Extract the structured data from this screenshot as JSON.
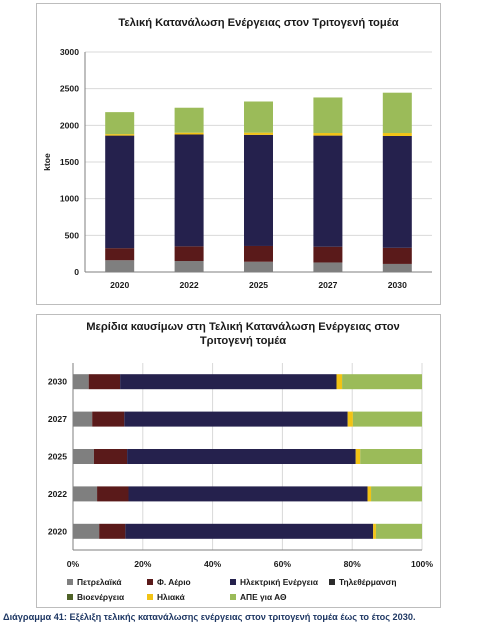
{
  "caption": "Διάγραμμα 41: Εξέλιξη τελικής κατανάλωσης ενέργειας στον τριτογενή τομέα έως το έτος 2030.",
  "colors": {
    "petrelaika": "#7f7f7f",
    "fysiko_aerio": "#5a1a1a",
    "ilektriki": "#25214d",
    "tiletherm": "#2b2b2b",
    "bioenergeia": "#4f6228",
    "iliaka": "#f2c314",
    "ape_ath": "#9bbb59",
    "grid": "#d9d9d9",
    "axis": "#7f7f7f"
  },
  "chart_data": [
    {
      "type": "bar",
      "stacked": true,
      "title": "Τελική Κατανάλωση Ενέργειας στον Τριτογενή τομέα",
      "xlabel": "",
      "ylabel": "ktoe",
      "ylim": [
        0,
        3000
      ],
      "yticks": [
        0,
        500,
        1000,
        1500,
        2000,
        2500,
        3000
      ],
      "grid": true,
      "categories": [
        "2020",
        "2022",
        "2025",
        "2027",
        "2030"
      ],
      "series": [
        {
          "key": "petrelaika",
          "values": [
            160,
            150,
            140,
            130,
            110
          ]
        },
        {
          "key": "fysiko_aerio",
          "values": [
            165,
            200,
            215,
            215,
            220
          ]
        },
        {
          "key": "ilektriki",
          "values": [
            1535,
            1525,
            1515,
            1515,
            1525
          ]
        },
        {
          "key": "tiletherm",
          "values": [
            0,
            0,
            0,
            0,
            0
          ]
        },
        {
          "key": "bioenergeia",
          "values": [
            0,
            0,
            0,
            0,
            0
          ]
        },
        {
          "key": "iliaka",
          "values": [
            20,
            25,
            30,
            35,
            40
          ]
        },
        {
          "key": "ape_ath",
          "values": [
            300,
            340,
            425,
            485,
            550
          ]
        }
      ]
    },
    {
      "type": "bar",
      "orientation": "horizontal",
      "stacked": "percent",
      "title": "Μερίδια καυσίμων στη Τελική Κατανάλωση Ενέργειας στον Τριτογενή τομέα",
      "title_lines": [
        "Μερίδια καυσίμων στη Τελική Κατανάλωση Ενέργειας στον",
        "Τριτογενή τομέα"
      ],
      "xlim": [
        0,
        100
      ],
      "xticks": [
        "0%",
        "20%",
        "40%",
        "60%",
        "80%",
        "100%"
      ],
      "grid": true,
      "categories": [
        "2020",
        "2022",
        "2025",
        "2027",
        "2030"
      ],
      "series": [
        {
          "key": "petrelaika",
          "values": [
            7.5,
            6.9,
            6.0,
            5.5,
            4.5
          ]
        },
        {
          "key": "fysiko_aerio",
          "values": [
            7.5,
            9.0,
            9.5,
            9.2,
            9.0
          ]
        },
        {
          "key": "ilektriki",
          "values": [
            71.0,
            68.5,
            65.5,
            64.0,
            62.0
          ]
        },
        {
          "key": "tiletherm",
          "values": [
            0,
            0,
            0,
            0,
            0
          ]
        },
        {
          "key": "bioenergeia",
          "values": [
            0,
            0,
            0,
            0,
            0
          ]
        },
        {
          "key": "iliaka",
          "values": [
            0.8,
            1.0,
            1.3,
            1.5,
            1.6
          ]
        },
        {
          "key": "ape_ath",
          "values": [
            13.2,
            14.6,
            17.7,
            19.8,
            22.9
          ]
        }
      ],
      "legend": {
        "placement": "bottom",
        "entries": [
          {
            "key": "petrelaika",
            "label": "Πετρελαϊκά"
          },
          {
            "key": "fysiko_aerio",
            "label": "Φ. Αέριο"
          },
          {
            "key": "ilektriki",
            "label": "Ηλεκτρική Ενέργεια"
          },
          {
            "key": "tiletherm",
            "label": "Τηλεθέρμανση"
          },
          {
            "key": "bioenergeia",
            "label": "Βιοενέργεια"
          },
          {
            "key": "iliaka",
            "label": "Ηλιακά"
          },
          {
            "key": "ape_ath",
            "label": "ΑΠΕ για ΑΘ"
          }
        ]
      }
    }
  ]
}
